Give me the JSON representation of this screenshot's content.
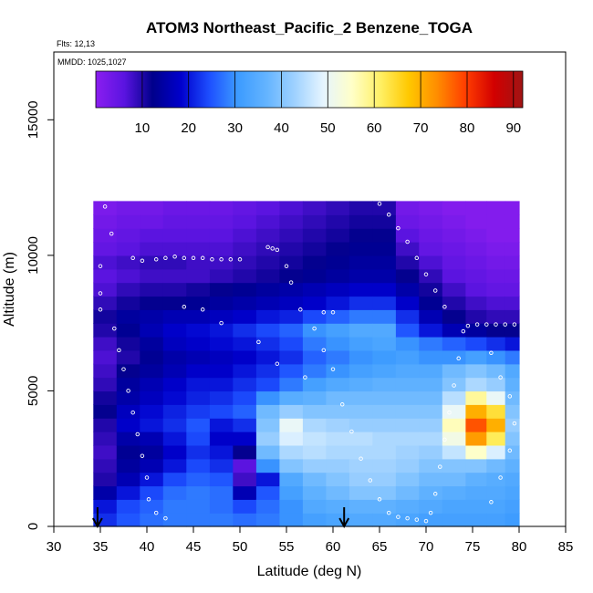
{
  "chart_data": {
    "type": "heatmap",
    "title": "ATOM3 Northeast_Pacific_2 Benzene_TOGA",
    "annotations": {
      "flights": "Flts: 12,13",
      "dates": "MMDD: 1025,1027"
    },
    "xlabel": "Latitude (deg N)",
    "ylabel": "Altitude (m)",
    "xlim": [
      30,
      85
    ],
    "ylim": [
      0,
      17500
    ],
    "x_ticks": [
      "30",
      "35",
      "40",
      "45",
      "50",
      "55",
      "60",
      "65",
      "70",
      "75",
      "80",
      "85"
    ],
    "y_ticks": [
      "0",
      "5000",
      "10000",
      "15000"
    ],
    "colorbar": {
      "range": [
        0,
        92
      ],
      "tick_labels": [
        "10",
        "20",
        "30",
        "40",
        "50",
        "60",
        "70",
        "80",
        "90"
      ],
      "colors": [
        "#8b1ef0",
        "#5a14e0",
        "#00008b",
        "#0000cd",
        "#1e50ff",
        "#3c9bff",
        "#64b4ff",
        "#a0d2ff",
        "#e6f5ff",
        "#ffffc8",
        "#fff064",
        "#ffc800",
        "#ff8c00",
        "#ff3c00",
        "#d20000",
        "#a01414"
      ]
    },
    "arrow_markers_x": [
      34.7,
      61.2
    ],
    "altitude_bins": [
      500,
      1000,
      1500,
      2000,
      2500,
      3000,
      3500,
      4000,
      4500,
      5000,
      5500,
      6000,
      6500,
      7000,
      7500,
      8000,
      8500,
      9000,
      9500,
      10000,
      10500,
      11000,
      11500,
      12000
    ],
    "latitude_bins": [
      {
        "lat": 35.5,
        "values": [
          22,
          20,
          15,
          10,
          9,
          8,
          9,
          10,
          12,
          11,
          9,
          8,
          7,
          8,
          10,
          11,
          9,
          7,
          6,
          7,
          5,
          4,
          3,
          2
        ]
      },
      {
        "lat": 38,
        "values": [
          25,
          24,
          20,
          16,
          14,
          13,
          15,
          18,
          17,
          15,
          14,
          12,
          10,
          11,
          13,
          14,
          11,
          9,
          7,
          8,
          6,
          5,
          4,
          3
        ]
      },
      {
        "lat": 40.5,
        "values": [
          27,
          26,
          24,
          20,
          16,
          14,
          16,
          20,
          19,
          17,
          16,
          14,
          13,
          14,
          16,
          15,
          12,
          10,
          8,
          9,
          7,
          6,
          4,
          3
        ]
      },
      {
        "lat": 43,
        "values": [
          28,
          28,
          27,
          24,
          20,
          18,
          20,
          22,
          21,
          19,
          18,
          16,
          15,
          17,
          18,
          16,
          12,
          10,
          8,
          9,
          7,
          6,
          5,
          4
        ]
      },
      {
        "lat": 45.5,
        "values": [
          28,
          28,
          28,
          26,
          24,
          22,
          24,
          25,
          23,
          21,
          20,
          18,
          16,
          18,
          19,
          16,
          13,
          11,
          8,
          8,
          7,
          6,
          5,
          4
        ]
      },
      {
        "lat": 48,
        "values": [
          28,
          27,
          27,
          25,
          22,
          20,
          18,
          20,
          24,
          22,
          20,
          18,
          17,
          19,
          20,
          17,
          14,
          12,
          9,
          8,
          7,
          6,
          5,
          4
        ]
      },
      {
        "lat": 50.5,
        "values": [
          27,
          24,
          16,
          8,
          6,
          12,
          18,
          22,
          26,
          24,
          22,
          20,
          18,
          20,
          22,
          18,
          15,
          13,
          10,
          9,
          8,
          7,
          6,
          5
        ]
      },
      {
        "lat": 53,
        "values": [
          28,
          27,
          25,
          20,
          30,
          38,
          42,
          40,
          38,
          30,
          24,
          22,
          20,
          22,
          24,
          20,
          16,
          14,
          11,
          10,
          9,
          8,
          7,
          6
        ]
      },
      {
        "lat": 55.5,
        "values": [
          30,
          30,
          32,
          34,
          40,
          44,
          48,
          50,
          42,
          35,
          28,
          25,
          22,
          24,
          26,
          21,
          17,
          15,
          12,
          11,
          10,
          9,
          8,
          7
        ]
      },
      {
        "lat": 58,
        "values": [
          32,
          34,
          36,
          38,
          42,
          45,
          46,
          44,
          40,
          36,
          32,
          28,
          26,
          28,
          30,
          24,
          18,
          16,
          13,
          12,
          11,
          10,
          9,
          8
        ]
      },
      {
        "lat": 60.5,
        "values": [
          33,
          35,
          38,
          40,
          42,
          44,
          45,
          43,
          40,
          38,
          34,
          30,
          28,
          30,
          32,
          26,
          20,
          17,
          14,
          13,
          12,
          11,
          10,
          9
        ]
      },
      {
        "lat": 63,
        "values": [
          34,
          36,
          40,
          42,
          43,
          44,
          45,
          42,
          40,
          38,
          35,
          32,
          30,
          32,
          34,
          28,
          22,
          18,
          15,
          14,
          13,
          12,
          11,
          10
        ]
      },
      {
        "lat": 65.5,
        "values": [
          34,
          36,
          40,
          42,
          43,
          44,
          44,
          42,
          40,
          38,
          36,
          33,
          31,
          33,
          34,
          28,
          22,
          18,
          15,
          14,
          13,
          12,
          11,
          10
        ]
      },
      {
        "lat": 68,
        "values": [
          33,
          35,
          38,
          40,
          42,
          43,
          44,
          42,
          40,
          38,
          36,
          34,
          32,
          30,
          25,
          22,
          18,
          15,
          12,
          10,
          8,
          6,
          4,
          3
        ]
      },
      {
        "lat": 70.5,
        "values": [
          32,
          34,
          36,
          38,
          40,
          42,
          44,
          42,
          40,
          38,
          36,
          34,
          30,
          28,
          20,
          16,
          13,
          11,
          9,
          7,
          5,
          4,
          3,
          2
        ]
      },
      {
        "lat": 73,
        "values": [
          32,
          33,
          35,
          38,
          40,
          46,
          52,
          56,
          50,
          45,
          40,
          38,
          30,
          26,
          16,
          12,
          10,
          8,
          6,
          5,
          4,
          3,
          2,
          1
        ]
      },
      {
        "lat": 75.5,
        "values": [
          32,
          33,
          34,
          36,
          40,
          55,
          72,
          78,
          70,
          58,
          44,
          40,
          32,
          24,
          14,
          10,
          8,
          6,
          5,
          4,
          3,
          2,
          1,
          1
        ]
      },
      {
        "lat": 77.5,
        "values": [
          32,
          33,
          34,
          35,
          38,
          48,
          62,
          70,
          64,
          50,
          42,
          38,
          30,
          22,
          12,
          9,
          7,
          5,
          4,
          3,
          2,
          1,
          1,
          1
        ]
      },
      {
        "lat": 79.5,
        "values": [
          31,
          32,
          33,
          34,
          36,
          38,
          40,
          42,
          40,
          38,
          36,
          34,
          28,
          20,
          12,
          9,
          7,
          5,
          4,
          3,
          2,
          1,
          1,
          1
        ]
      }
    ],
    "flight_track": [
      [
        35,
        12400
      ],
      [
        36,
        12300
      ],
      [
        35.5,
        11800
      ],
      [
        36.2,
        10800
      ],
      [
        35,
        9600
      ],
      [
        35,
        8600
      ],
      [
        35,
        8000
      ],
      [
        36.5,
        7300
      ],
      [
        37,
        6500
      ],
      [
        37.5,
        5800
      ],
      [
        38,
        5000
      ],
      [
        38.5,
        4200
      ],
      [
        39,
        3400
      ],
      [
        39.5,
        2600
      ],
      [
        40,
        1800
      ],
      [
        40.2,
        1000
      ],
      [
        41,
        500
      ],
      [
        42,
        300
      ],
      [
        38.5,
        9900
      ],
      [
        39.5,
        9800
      ],
      [
        41,
        9850
      ],
      [
        42,
        9900
      ],
      [
        43,
        9950
      ],
      [
        44,
        9900
      ],
      [
        45,
        9900
      ],
      [
        46,
        9900
      ],
      [
        47,
        9850
      ],
      [
        48,
        9850
      ],
      [
        49,
        9850
      ],
      [
        50,
        9850
      ],
      [
        53,
        10300
      ],
      [
        53.5,
        10250
      ],
      [
        54,
        10200
      ],
      [
        55,
        9600
      ],
      [
        55.5,
        9000
      ],
      [
        56.5,
        8000
      ],
      [
        58,
        7300
      ],
      [
        59,
        6500
      ],
      [
        60,
        5800
      ],
      [
        61,
        4500
      ],
      [
        62,
        3500
      ],
      [
        63,
        2500
      ],
      [
        64,
        1700
      ],
      [
        65,
        1000
      ],
      [
        66,
        500
      ],
      [
        67,
        350
      ],
      [
        68,
        300
      ],
      [
        69,
        250
      ],
      [
        70,
        200
      ],
      [
        70.5,
        500
      ],
      [
        71,
        1200
      ],
      [
        71.5,
        2200
      ],
      [
        72,
        3200
      ],
      [
        72.5,
        4200
      ],
      [
        73,
        5200
      ],
      [
        73.5,
        6200
      ],
      [
        74,
        7200
      ],
      [
        74.5,
        7400
      ],
      [
        75.5,
        7450
      ],
      [
        76.5,
        7450
      ],
      [
        77.5,
        7450
      ],
      [
        78.5,
        7450
      ],
      [
        79.5,
        7450
      ],
      [
        77,
        6400
      ],
      [
        78,
        5500
      ],
      [
        79,
        4800
      ],
      [
        79.5,
        3800
      ],
      [
        79,
        2800
      ],
      [
        78,
        1800
      ],
      [
        77,
        900
      ],
      [
        64,
        12300
      ],
      [
        65,
        11900
      ],
      [
        66,
        11500
      ],
      [
        67,
        11000
      ],
      [
        68,
        10500
      ],
      [
        69,
        9900
      ],
      [
        70,
        9300
      ],
      [
        71,
        8700
      ],
      [
        72,
        8100
      ],
      [
        44,
        8100
      ],
      [
        46,
        8000
      ],
      [
        48,
        7500
      ],
      [
        52,
        6800
      ],
      [
        54,
        6000
      ],
      [
        57,
        5500
      ],
      [
        59,
        7900
      ],
      [
        60,
        7900
      ]
    ]
  }
}
